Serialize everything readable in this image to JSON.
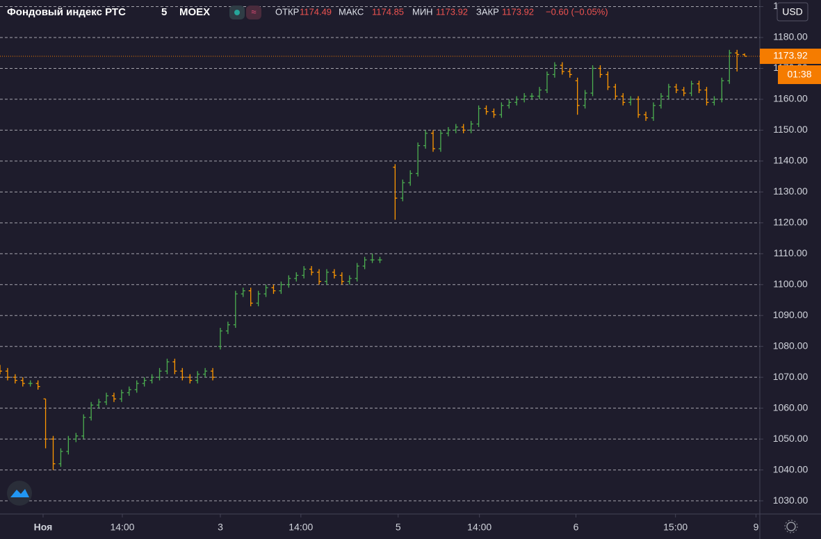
{
  "chart_data": {
    "type": "ohlc",
    "title": "Фондовый индекс РТС",
    "interval": "5",
    "exchange": "MOEX",
    "currency": "USD",
    "countdown": "01:38",
    "legend_labels": [
      "ОТКР",
      "МАКС",
      "МИН",
      "ЗАКР"
    ],
    "change_label": "−0.60 (−0.05%)",
    "up_color": "#4caf50",
    "down_color": "#ff9800",
    "grid": true,
    "xlim": [
      0,
      100
    ],
    "ylim": [
      1025.74,
      1192.14
    ],
    "xticks": [
      {
        "value": 5.67,
        "label": "Ноя"
      },
      {
        "value": 16.1,
        "label": "14:00"
      },
      {
        "value": 29,
        "label": "3"
      },
      {
        "value": 39.6,
        "label": "14:00"
      },
      {
        "value": 52.4,
        "label": "5"
      },
      {
        "value": 63.1,
        "label": "14:00"
      },
      {
        "value": 75.8,
        "label": "6"
      },
      {
        "value": 88.9,
        "label": "15:00"
      },
      {
        "value": 99.5,
        "label": "9"
      }
    ],
    "yticks": [
      {
        "value": 1190,
        "label": "1190.00"
      },
      {
        "value": 1180,
        "label": "1180.00"
      },
      {
        "value": 1170,
        "label": "1170.00"
      },
      {
        "value": 1160,
        "label": "1160.00"
      },
      {
        "value": 1150,
        "label": "1150.00"
      },
      {
        "value": 1140,
        "label": "1140.00"
      },
      {
        "value": 1130,
        "label": "1130.00"
      },
      {
        "value": 1120,
        "label": "1120.00"
      },
      {
        "value": 1110,
        "label": "1110.00"
      },
      {
        "value": 1100,
        "label": "1100.00"
      },
      {
        "value": 1090,
        "label": "1090.00"
      },
      {
        "value": 1080,
        "label": "1080.00"
      },
      {
        "value": 1070,
        "label": "1070.00"
      },
      {
        "value": 1060,
        "label": "1060.00"
      },
      {
        "value": 1050,
        "label": "1050.00"
      },
      {
        "value": 1040,
        "label": "1040.00"
      },
      {
        "value": 1030,
        "label": "1030.00"
      }
    ],
    "x": [
      0,
      1,
      2,
      3,
      4,
      5,
      6,
      7,
      8,
      9,
      10,
      11,
      12,
      13,
      14,
      15,
      16,
      17,
      18,
      19,
      20,
      21,
      22,
      23,
      24,
      25,
      26,
      27,
      28,
      29,
      30,
      31,
      32,
      33,
      34,
      35,
      36,
      37,
      38,
      39,
      40,
      41,
      42,
      43,
      44,
      45,
      46,
      47,
      48,
      49,
      50,
      52,
      53,
      54,
      55,
      56,
      57,
      58,
      59,
      60,
      61,
      62,
      63,
      64,
      65,
      66,
      67,
      68,
      69,
      70,
      71,
      72,
      73,
      74,
      75,
      76,
      77,
      78,
      79,
      80,
      81,
      82,
      83,
      84,
      85,
      86,
      87,
      88,
      89,
      90,
      91,
      92,
      93,
      94,
      95,
      96,
      97,
      98
    ],
    "open": [
      1073,
      1072,
      1070,
      1069,
      1068,
      1068,
      1063,
      1050,
      1042,
      1046,
      1050,
      1051,
      1057,
      1061,
      1062,
      1064,
      1063,
      1065,
      1066,
      1068,
      1069,
      1070,
      1072,
      1075,
      1072,
      1070,
      1069,
      1071,
      1072,
      1080,
      1085,
      1087,
      1097,
      1098,
      1094,
      1097,
      1099,
      1098,
      1100,
      1102,
      1103,
      1105,
      1104,
      1101,
      1104,
      1103,
      1101,
      1102,
      1106,
      1108,
      1108,
      1138,
      1128,
      1133,
      1136,
      1145,
      1149,
      1144,
      1149,
      1150,
      1151,
      1150,
      1152,
      1157,
      1156,
      1155,
      1158,
      1159,
      1160,
      1161,
      1161,
      1163,
      1168,
      1171,
      1169,
      1166,
      1158,
      1162,
      1170,
      1168,
      1164,
      1161,
      1159,
      1160,
      1155,
      1154,
      1158,
      1161,
      1164,
      1163,
      1162,
      1165,
      1163,
      1159,
      1160,
      1166,
      1175,
      1174.49
    ],
    "high": [
      1074,
      1073,
      1071,
      1070,
      1069,
      1069,
      1063,
      1051,
      1047,
      1051,
      1052,
      1058,
      1062,
      1063,
      1065,
      1065,
      1066,
      1067,
      1069,
      1070,
      1071,
      1073,
      1076,
      1076,
      1073,
      1071,
      1072,
      1073,
      1073,
      1086,
      1088,
      1098,
      1099,
      1099,
      1098,
      1100,
      1100,
      1101,
      1103,
      1104,
      1106,
      1106,
      1105,
      1105,
      1105,
      1104,
      1103,
      1107,
      1109,
      1110,
      1109,
      1139,
      1134,
      1137,
      1146,
      1150,
      1150,
      1150,
      1151,
      1152,
      1152,
      1153,
      1158,
      1158,
      1157,
      1159,
      1160,
      1161,
      1162,
      1162,
      1164,
      1169,
      1172,
      1172,
      1170,
      1167,
      1163,
      1171,
      1171,
      1169,
      1165,
      1162,
      1161,
      1161,
      1156,
      1159,
      1162,
      1165,
      1165,
      1164,
      1166,
      1166,
      1164,
      1161,
      1167,
      1176,
      1176,
      1174.85
    ],
    "low": [
      1071,
      1069,
      1068,
      1067,
      1067,
      1066,
      1047,
      1040,
      1041,
      1045,
      1049,
      1050,
      1056,
      1060,
      1061,
      1062,
      1062,
      1064,
      1065,
      1067,
      1068,
      1069,
      1071,
      1071,
      1069,
      1068,
      1068,
      1070,
      1069,
      1079,
      1084,
      1086,
      1096,
      1093,
      1093,
      1096,
      1097,
      1097,
      1099,
      1101,
      1102,
      1103,
      1100,
      1100,
      1102,
      1100,
      1100,
      1101,
      1105,
      1107,
      1107,
      1121,
      1127,
      1132,
      1135,
      1144,
      1143,
      1143,
      1148,
      1149,
      1149,
      1149,
      1151,
      1155,
      1154,
      1154,
      1157,
      1158,
      1159,
      1160,
      1160,
      1162,
      1167,
      1168,
      1167,
      1155,
      1157,
      1161,
      1167,
      1163,
      1160,
      1158,
      1158,
      1154,
      1153,
      1153,
      1157,
      1160,
      1162,
      1161,
      1161,
      1162,
      1158,
      1158,
      1159,
      1165,
      1169,
      1173.92
    ],
    "close": [
      1072,
      1070,
      1069,
      1068,
      1068,
      1067,
      1050,
      1042,
      1046,
      1050,
      1051,
      1057,
      1061,
      1062,
      1064,
      1063,
      1065,
      1066,
      1068,
      1069,
      1070,
      1072,
      1075,
      1072,
      1070,
      1069,
      1071,
      1072,
      1070,
      1085,
      1087,
      1097,
      1098,
      1094,
      1097,
      1099,
      1098,
      1100,
      1102,
      1103,
      1105,
      1104,
      1101,
      1104,
      1103,
      1101,
      1102,
      1106,
      1108,
      1108,
      1108,
      1128,
      1133,
      1136,
      1145,
      1149,
      1144,
      1149,
      1150,
      1151,
      1150,
      1152,
      1157,
      1156,
      1155,
      1158,
      1159,
      1160,
      1161,
      1161,
      1163,
      1168,
      1171,
      1169,
      1168,
      1158,
      1162,
      1170,
      1168,
      1164,
      1161,
      1159,
      1160,
      1155,
      1154,
      1158,
      1161,
      1164,
      1163,
      1162,
      1165,
      1163,
      1159,
      1160,
      1166,
      1175,
      1174.49,
      1173.92
    ]
  }
}
